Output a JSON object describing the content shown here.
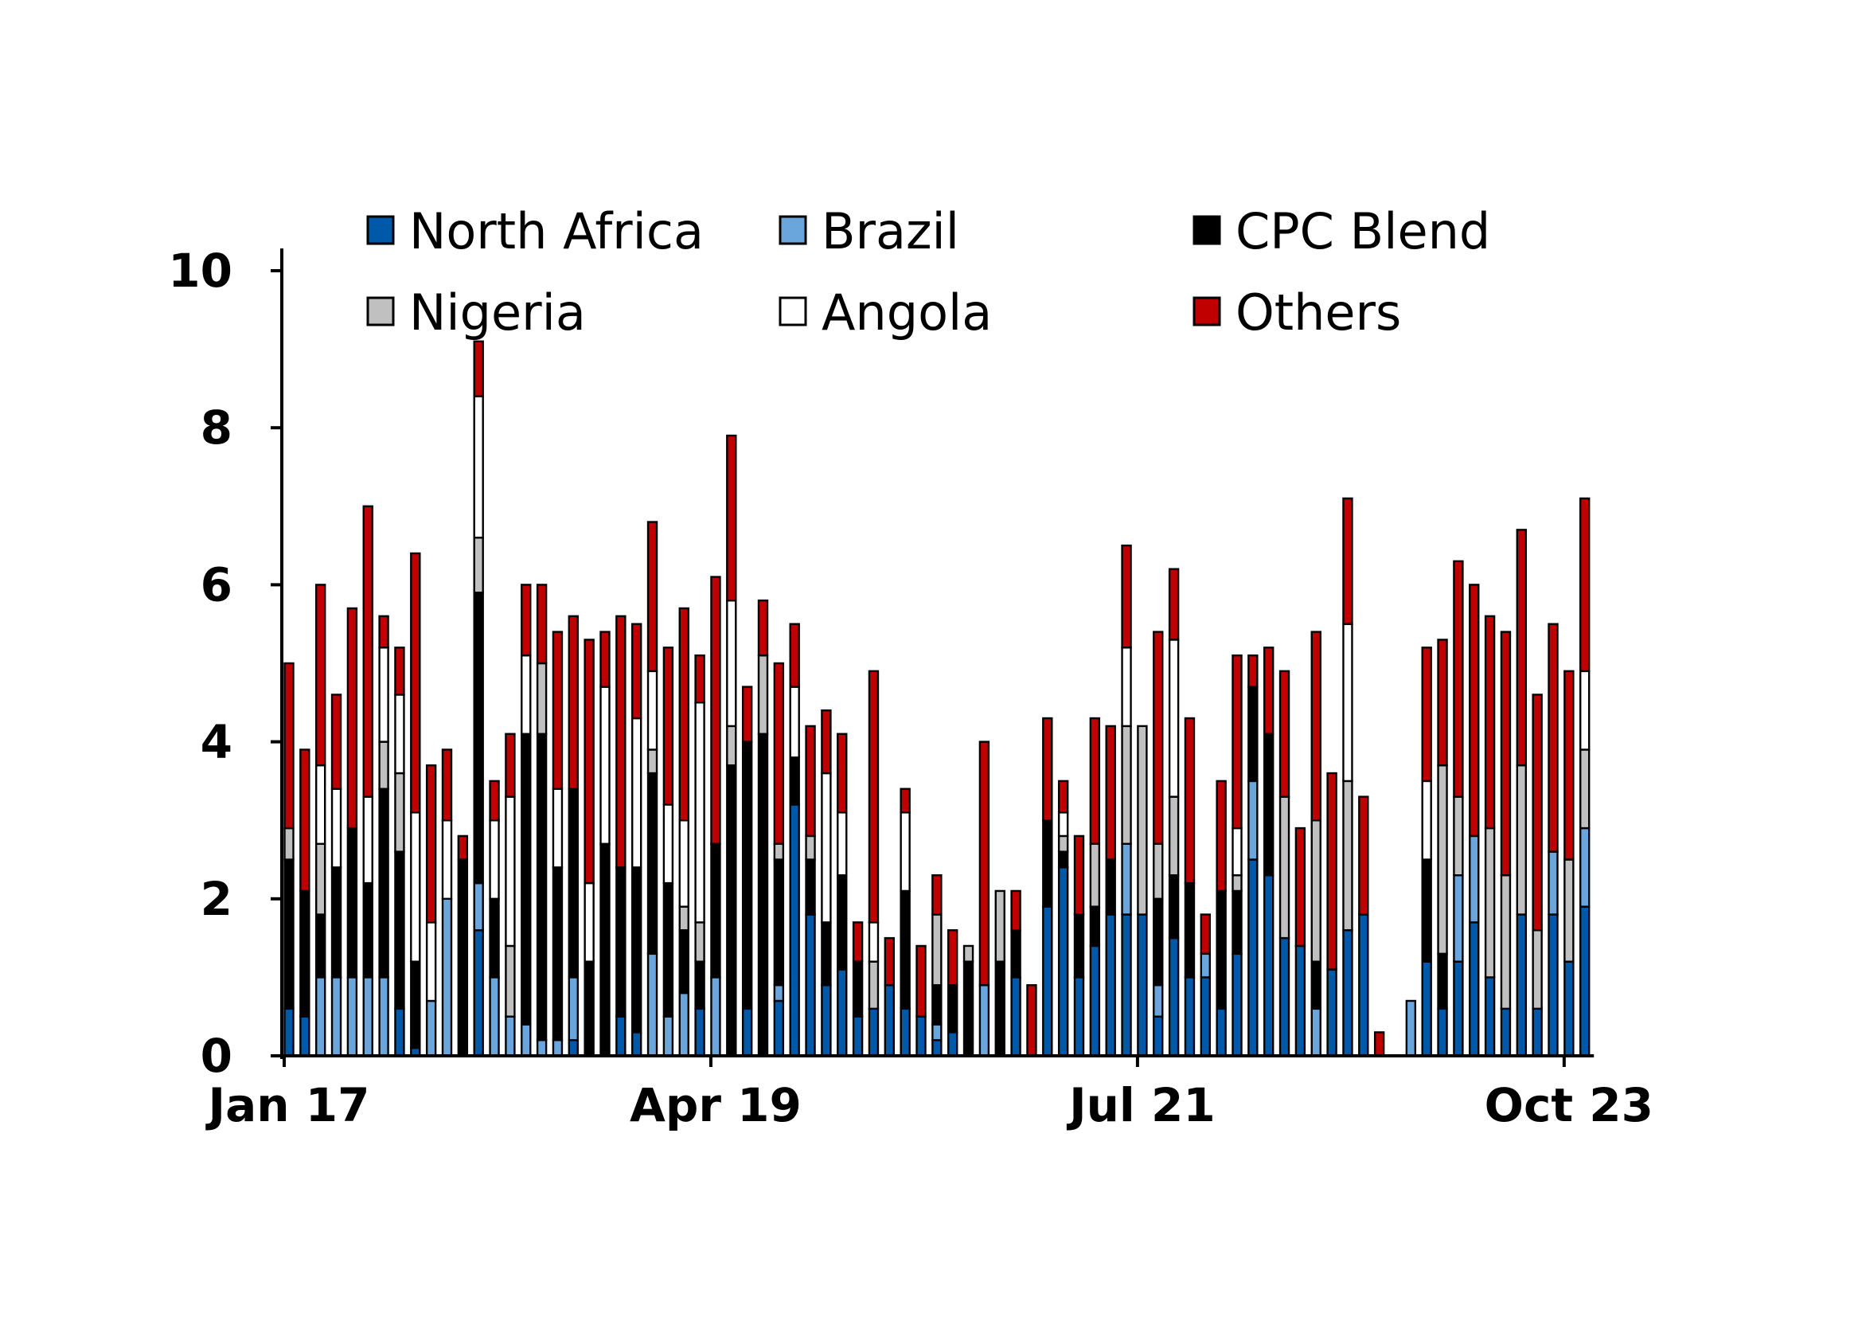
{
  "chart_data": {
    "type": "bar",
    "stacked": true,
    "title": "",
    "xlabel": "",
    "ylabel": "",
    "ylim": [
      0,
      10
    ],
    "yticks": [
      "0",
      "2",
      "4",
      "6",
      "8",
      "10"
    ],
    "xtick_labels": [
      "Jan 17",
      "Apr 19",
      "Jul 21",
      "Oct 23"
    ],
    "xtick_indices": [
      0,
      27,
      54,
      81
    ],
    "legend_position": "top",
    "series": [
      {
        "name": "North Africa",
        "color": "#0058a8",
        "values": [
          0.6,
          0.5,
          0.0,
          0.0,
          0.0,
          0.0,
          0.0,
          0.6,
          0.1,
          0.0,
          0.0,
          0.0,
          1.6,
          0.0,
          0.0,
          0.0,
          0.0,
          0.0,
          0.2,
          0.0,
          0.0,
          0.5,
          0.3,
          0.0,
          0.0,
          0.0,
          0.6,
          0.0,
          0.0,
          0.6,
          0.0,
          0.7,
          3.2,
          1.8,
          0.9,
          1.1,
          0.5,
          0.6,
          0.9,
          0.6,
          0.5,
          0.2,
          0.3,
          0.0,
          0.0,
          0.0,
          1.0,
          0.0,
          1.9,
          2.4,
          1.0,
          1.4,
          1.8,
          1.8,
          1.8,
          0.5,
          1.5,
          1.0,
          1.0,
          0.6,
          1.3,
          2.5,
          2.3,
          1.5,
          1.4,
          0.0,
          1.1,
          1.6,
          1.8,
          0.0,
          0.0,
          0.0,
          1.2,
          0.6,
          1.2,
          1.7,
          1.0,
          0.6,
          1.8,
          0.6,
          1.8,
          1.2,
          1.9
        ]
      },
      {
        "name": "Brazil",
        "color": "#6aa6dc",
        "values": [
          0.0,
          0.0,
          1.0,
          1.0,
          1.0,
          1.0,
          1.0,
          0.0,
          0.0,
          0.7,
          2.0,
          0.0,
          0.6,
          1.0,
          0.5,
          0.4,
          0.2,
          0.2,
          0.8,
          0.0,
          0.0,
          0.0,
          0.0,
          1.3,
          0.5,
          0.8,
          0.0,
          1.0,
          0.0,
          0.0,
          0.0,
          0.2,
          0.0,
          0.0,
          0.0,
          0.0,
          0.0,
          0.0,
          0.0,
          0.0,
          0.0,
          0.2,
          0.0,
          0.0,
          0.9,
          0.0,
          0.0,
          0.0,
          0.0,
          0.0,
          0.0,
          0.0,
          0.0,
          0.9,
          0.0,
          0.4,
          0.0,
          0.0,
          0.3,
          0.0,
          0.0,
          1.0,
          0.0,
          0.0,
          0.0,
          0.6,
          0.0,
          0.0,
          0.0,
          0.0,
          0.0,
          0.7,
          0.0,
          0.0,
          1.1,
          1.1,
          0.0,
          0.0,
          0.0,
          0.0,
          0.8,
          0.0,
          1.0
        ]
      },
      {
        "name": "CPC Blend",
        "color": "#000000",
        "values": [
          1.9,
          1.6,
          0.8,
          1.4,
          1.9,
          1.2,
          2.4,
          2.0,
          1.1,
          0.0,
          0.0,
          2.5,
          3.7,
          1.0,
          0.0,
          3.7,
          3.9,
          2.2,
          2.4,
          1.2,
          2.7,
          1.9,
          2.1,
          2.3,
          1.7,
          0.8,
          0.6,
          1.7,
          3.7,
          3.4,
          4.1,
          1.6,
          0.6,
          0.7,
          0.8,
          1.2,
          0.7,
          0.0,
          0.0,
          1.5,
          0.0,
          0.5,
          0.6,
          1.2,
          0.0,
          1.2,
          0.6,
          0.0,
          1.1,
          0.2,
          0.8,
          0.5,
          0.7,
          0.0,
          0.0,
          1.1,
          0.8,
          1.2,
          0.0,
          1.5,
          0.8,
          1.2,
          1.8,
          0.0,
          0.0,
          0.6,
          0.0,
          0.0,
          0.0,
          0.0,
          0.0,
          0.0,
          1.3,
          0.7,
          0.0,
          0.0,
          0.0,
          0.0,
          0.0,
          0.0,
          0.0,
          0.0,
          0.0
        ]
      },
      {
        "name": "Nigeria",
        "color": "#c0c0c0",
        "values": [
          0.4,
          0.0,
          0.9,
          0.0,
          0.0,
          0.0,
          0.6,
          1.0,
          0.0,
          0.0,
          0.0,
          0.0,
          0.7,
          0.0,
          0.9,
          0.0,
          0.9,
          0.0,
          0.0,
          0.0,
          0.0,
          0.0,
          0.0,
          0.3,
          0.0,
          0.3,
          0.5,
          0.0,
          0.5,
          0.0,
          1.0,
          0.2,
          0.0,
          0.3,
          0.0,
          0.0,
          0.0,
          0.6,
          0.0,
          0.0,
          0.0,
          0.9,
          0.0,
          0.2,
          0.0,
          0.9,
          0.0,
          0.0,
          0.0,
          0.2,
          0.0,
          0.8,
          0.0,
          1.5,
          2.4,
          0.7,
          1.0,
          0.0,
          0.0,
          0.0,
          0.2,
          0.0,
          0.0,
          1.8,
          0.0,
          1.8,
          0.0,
          1.9,
          0.0,
          0.0,
          0.0,
          0.0,
          0.0,
          2.4,
          1.0,
          0.0,
          1.9,
          1.7,
          1.9,
          1.0,
          0.0,
          1.3,
          1.0
        ]
      },
      {
        "name": "Angola",
        "color": "#ffffff",
        "values": [
          0.0,
          0.0,
          1.0,
          1.0,
          0.0,
          1.1,
          1.2,
          1.0,
          1.9,
          1.0,
          1.0,
          0.0,
          1.8,
          1.0,
          1.9,
          1.0,
          0.0,
          1.0,
          0.0,
          1.0,
          2.0,
          0.0,
          1.9,
          1.0,
          1.0,
          1.1,
          2.8,
          0.0,
          1.6,
          0.0,
          0.0,
          0.0,
          0.9,
          0.0,
          1.9,
          0.8,
          0.0,
          0.5,
          0.0,
          1.0,
          0.0,
          0.0,
          0.0,
          0.0,
          0.0,
          0.0,
          0.0,
          0.0,
          0.0,
          0.3,
          0.0,
          0.0,
          0.0,
          1.0,
          0.0,
          0.0,
          2.0,
          0.0,
          0.0,
          0.0,
          0.6,
          0.0,
          0.0,
          0.0,
          0.0,
          0.0,
          0.0,
          2.0,
          0.0,
          0.0,
          0.0,
          0.0,
          1.0,
          0.0,
          0.0,
          0.0,
          0.0,
          0.0,
          0.0,
          0.0,
          0.0,
          0.0,
          1.0
        ]
      },
      {
        "name": "Others",
        "color": "#c00000",
        "values": [
          2.1,
          1.8,
          2.3,
          1.2,
          2.8,
          3.7,
          0.4,
          0.6,
          3.3,
          2.0,
          0.9,
          0.3,
          0.7,
          0.5,
          0.8,
          0.9,
          1.0,
          2.0,
          2.2,
          3.1,
          0.7,
          3.2,
          1.2,
          1.9,
          2.0,
          2.7,
          0.6,
          3.4,
          2.1,
          0.7,
          0.7,
          2.3,
          0.8,
          1.4,
          0.8,
          1.0,
          0.5,
          3.2,
          0.6,
          0.3,
          0.9,
          0.5,
          0.7,
          0.0,
          3.1,
          0.0,
          0.5,
          0.9,
          1.3,
          0.4,
          1.0,
          1.6,
          1.7,
          1.3,
          0.0,
          2.7,
          0.9,
          2.1,
          0.5,
          1.4,
          2.2,
          0.4,
          1.1,
          1.6,
          1.5,
          2.4,
          2.5,
          1.6,
          1.5,
          0.3,
          0.0,
          0.0,
          1.7,
          1.6,
          3.0,
          3.2,
          2.7,
          3.1,
          3.0,
          3.0,
          2.9,
          2.4,
          2.2
        ]
      }
    ]
  }
}
